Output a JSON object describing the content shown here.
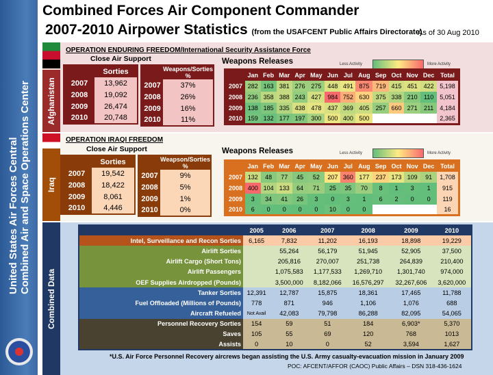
{
  "sidebar": {
    "line1": "United States Air Forces Central",
    "line2": "Combined Air and Space Operations Center"
  },
  "header": {
    "title": "Combined Forces Air Component Commander",
    "subtitle": "2007-2010 Airpower Statistics",
    "source": "(from the USAFCENT Public Affairs Directorate)",
    "as_of": "As of 30 Aug 2010"
  },
  "colors": {
    "scale_low": "#63be7b",
    "scale_mid": "#ffeb84",
    "scale_high": "#f8696b",
    "afghan_theme": "#8b1a1a",
    "iraq_theme": "#d9701f",
    "combined_theme": "#1f3864"
  },
  "legend": {
    "less": "Less Activity",
    "more": "More Activity"
  },
  "months": [
    "Jan",
    "Feb",
    "Mar",
    "Apr",
    "May",
    "Jun",
    "Jul",
    "Aug",
    "Sep",
    "Oct",
    "Nov",
    "Dec"
  ],
  "total_label": "Total",
  "afghanistan": {
    "tab": "Afghanistan",
    "operation": "OPERATION ENDURING FREEDOM/International Security Assistance Force",
    "cas_title": "Close Air Support",
    "sorties_header": "Sorties",
    "ws_header": "Weapons/Sorties %",
    "cas": [
      {
        "year": "2007",
        "sorties": "13,962",
        "ws": "37%"
      },
      {
        "year": "2008",
        "sorties": "19,092",
        "ws": "26%"
      },
      {
        "year": "2009",
        "sorties": "26,474",
        "ws": "16%"
      },
      {
        "year": "2010",
        "sorties": "20,748",
        "ws": "11%"
      }
    ],
    "weapons_title": "Weapons Releases",
    "weapons": [
      {
        "year": "2007",
        "values": [
          282,
          163,
          381,
          276,
          275,
          448,
          491,
          875,
          719,
          415,
          451,
          422
        ],
        "total": "5,198"
      },
      {
        "year": "2008",
        "values": [
          236,
          358,
          388,
          243,
          427,
          984,
          752,
          630,
          375,
          338,
          210,
          110
        ],
        "total": "5,051"
      },
      {
        "year": "2009",
        "values": [
          138,
          185,
          335,
          438,
          478,
          437,
          369,
          405,
          257,
          660,
          271,
          211
        ],
        "total": "4,184"
      },
      {
        "year": "2010",
        "values": [
          159,
          132,
          177,
          197,
          300,
          500,
          400,
          500,
          null,
          null,
          null,
          null
        ],
        "total": "2,365"
      }
    ]
  },
  "iraq": {
    "tab": "Iraq",
    "operation": "OPERATION IRAQI FREEDOM",
    "cas_title": "Close Air Support",
    "sorties_header": "Sorties",
    "ws_header": "Weapson/Sorties %",
    "cas": [
      {
        "year": "2007",
        "sorties": "19,542",
        "ws": "9%"
      },
      {
        "year": "2008",
        "sorties": "18,422",
        "ws": "5%"
      },
      {
        "year": "2009",
        "sorties": "8,061",
        "ws": "1%"
      },
      {
        "year": "2010",
        "sorties": "4,446",
        "ws": "0%"
      }
    ],
    "weapons_title": "Weapons Releases",
    "weapons": [
      {
        "year": "2007",
        "values": [
          132,
          48,
          77,
          45,
          52,
          207,
          360,
          177,
          237,
          173,
          109,
          91
        ],
        "total": "1,708"
      },
      {
        "year": "2008",
        "values": [
          400,
          104,
          133,
          64,
          71,
          25,
          35,
          70,
          8,
          1,
          3,
          1
        ],
        "total": "915"
      },
      {
        "year": "2009",
        "values": [
          3,
          34,
          41,
          26,
          3,
          0,
          3,
          1,
          6,
          2,
          0,
          0
        ],
        "total": "119"
      },
      {
        "year": "2010",
        "values": [
          6,
          0,
          0,
          0,
          0,
          10,
          0,
          0,
          null,
          null,
          null,
          null
        ],
        "total": "16"
      }
    ]
  },
  "combined": {
    "tab": "Combined Data",
    "years": [
      "2005",
      "2006",
      "2007",
      "2008",
      "2009",
      "2010"
    ],
    "groups": [
      {
        "label_bg": "#b5531a",
        "value_bg": "#fbcaa6",
        "rows": [
          {
            "label": "Intel, Surveillance and Recon Sorties",
            "values": [
              "6,165",
              "7,832",
              "11,202",
              "16,193",
              "18,898",
              "19,229"
            ]
          }
        ]
      },
      {
        "label_bg": "#77933c",
        "value_bg": "#d7e4bd",
        "rows": [
          {
            "label": "Airlift Sorties",
            "values": [
              "",
              "55,264",
              "56,179",
              "51,945",
              "52,905",
              "37,500"
            ]
          },
          {
            "label": "Airlift Cargo (Short Tons)",
            "values": [
              "",
              "205,816",
              "270,007",
              "251,738",
              "264,839",
              "210,400"
            ]
          },
          {
            "label": "Airlift Passengers",
            "values": [
              "",
              "1,075,583",
              "1,177,533",
              "1,269,710",
              "1,301,740",
              "974,000"
            ]
          },
          {
            "label": "OEF Supplies Airdropped (Pounds)",
            "values": [
              "",
              "3,500,000",
              "8,182,066",
              "16,576,297",
              "32,267,606",
              "3,620,000"
            ]
          }
        ]
      },
      {
        "label_bg": "#36609a",
        "value_bg": "#b9cde5",
        "rows": [
          {
            "label": "Tanker Sorties",
            "values": [
              "12,391",
              "12,787",
              "15,875",
              "18,361",
              "17,465",
              "11,788"
            ]
          },
          {
            "label": "Fuel Offloaded (Millions of Pounds)",
            "values": [
              "778",
              "871",
              "946",
              "1,106",
              "1,076",
              "688"
            ]
          },
          {
            "label": "Aircraft Refueled",
            "values": [
              "Not Avail",
              "42,083",
              "79,798",
              "86,288",
              "82,095",
              "54,065"
            ]
          }
        ]
      },
      {
        "label_bg": "#4a4230",
        "value_bg": "#c9b994",
        "rows": [
          {
            "label": "Personnel Recovery Sorties",
            "values": [
              "154",
              "59",
              "51",
              "184",
              "6,903*",
              "5,370"
            ]
          },
          {
            "label": "Saves",
            "values": [
              "105",
              "55",
              "69",
              "120",
              "768",
              "1013"
            ]
          },
          {
            "label": "Assists",
            "values": [
              "0",
              "10",
              "0",
              "52",
              "3,594",
              "1,627"
            ]
          }
        ]
      }
    ]
  },
  "footer": {
    "note": "*U.S. Air Force Personnel Recovery aircrews began assisting the U.S. Army casualty-evacuation mission in January 2009",
    "poc": "POC:  AFCENT/AFFOR (CAOC) Public Affairs – DSN  318-436-1624"
  }
}
